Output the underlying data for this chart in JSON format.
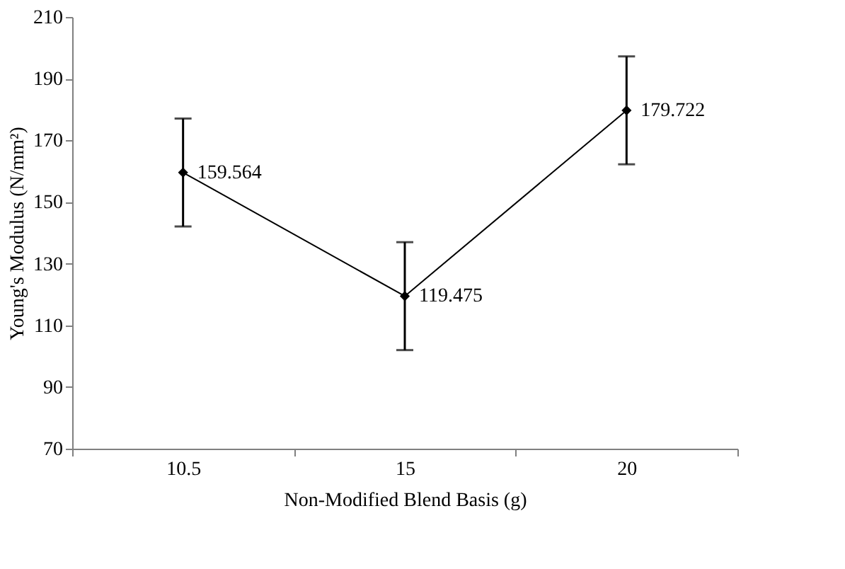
{
  "chart_data": {
    "type": "line",
    "xlabel": "Non-Modified Blend Basis (g)",
    "ylabel": "Young's Modulus (N/mm²)",
    "categories": [
      "10.5",
      "15",
      "20"
    ],
    "series": [
      {
        "color": "#000000",
        "values": [
          159.564,
          119.475,
          179.722
        ],
        "errors": [
          17.5,
          17.5,
          17.5
        ]
      }
    ],
    "ylim": [
      70,
      210
    ],
    "yticks": [
      70,
      90,
      110,
      130,
      150,
      170,
      190,
      210
    ],
    "data_labels": true,
    "marker": "diamond",
    "line_style": "solid",
    "grid": false
  }
}
